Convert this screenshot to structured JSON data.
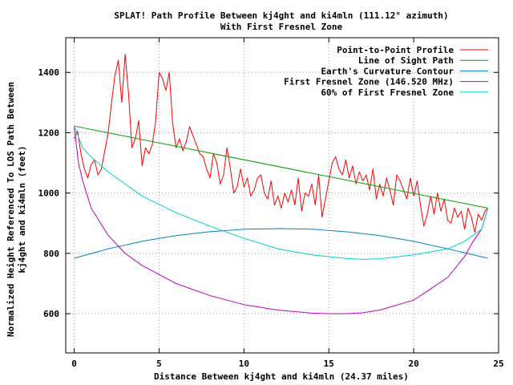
{
  "chart_data": {
    "type": "line",
    "title": "SPLAT! Path Profile Between kj4ght and ki4mln (111.12° azimuth)",
    "subtitle": "With First Fresnel Zone",
    "xlabel": "Distance Between kj4ght and ki4mln (24.37 miles)",
    "ylabel": [
      "Normalized Height Referenced To LOS Path Between",
      "kj4ght and ki4mln (feet)"
    ],
    "xlim": [
      -0.5,
      25
    ],
    "ylim": [
      470,
      1515
    ],
    "x_ticks": [
      "0",
      "5",
      "10",
      "15",
      "20",
      "25"
    ],
    "y_ticks": [
      "600",
      "800",
      "1000",
      "1200",
      "1400"
    ],
    "grid": true,
    "legend_position": "top-right",
    "series": [
      {
        "name": "Point-to-Point Profile",
        "color": "#ff0000",
        "x": [
          0,
          0.2,
          0.4,
          0.6,
          0.8,
          1.0,
          1.2,
          1.4,
          1.6,
          1.8,
          2.0,
          2.2,
          2.4,
          2.6,
          2.8,
          3.0,
          3.2,
          3.4,
          3.6,
          3.8,
          4.0,
          4.2,
          4.4,
          4.6,
          4.8,
          5.0,
          5.2,
          5.4,
          5.6,
          5.8,
          6.0,
          6.2,
          6.4,
          6.6,
          6.8,
          7.0,
          7.2,
          7.4,
          7.6,
          7.8,
          8.0,
          8.2,
          8.4,
          8.6,
          8.8,
          9.0,
          9.2,
          9.4,
          9.6,
          9.8,
          10.0,
          10.2,
          10.4,
          10.6,
          10.8,
          11.0,
          11.2,
          11.4,
          11.6,
          11.8,
          12.0,
          12.2,
          12.4,
          12.6,
          12.8,
          13.0,
          13.2,
          13.4,
          13.6,
          13.8,
          14.0,
          14.2,
          14.4,
          14.6,
          14.8,
          15.0,
          15.2,
          15.4,
          15.6,
          15.8,
          16.0,
          16.2,
          16.4,
          16.6,
          16.8,
          17.0,
          17.2,
          17.4,
          17.6,
          17.8,
          18.0,
          18.2,
          18.4,
          18.6,
          18.8,
          19.0,
          19.2,
          19.4,
          19.6,
          19.8,
          20.0,
          20.2,
          20.4,
          20.6,
          20.8,
          21.0,
          21.2,
          21.4,
          21.6,
          21.8,
          22.0,
          22.2,
          22.4,
          22.6,
          22.8,
          23.0,
          23.2,
          23.4,
          23.6,
          23.8,
          24.0,
          24.2,
          24.37
        ],
        "y": [
          1180,
          1205,
          1130,
          1080,
          1050,
          1095,
          1110,
          1060,
          1080,
          1140,
          1200,
          1300,
          1390,
          1440,
          1300,
          1460,
          1330,
          1150,
          1180,
          1240,
          1090,
          1150,
          1130,
          1160,
          1240,
          1400,
          1380,
          1340,
          1400,
          1230,
          1150,
          1180,
          1140,
          1170,
          1220,
          1190,
          1160,
          1130,
          1120,
          1080,
          1050,
          1130,
          1100,
          1030,
          1060,
          1150,
          1080,
          1000,
          1020,
          1080,
          1020,
          1050,
          990,
          1010,
          1050,
          1060,
          1000,
          980,
          1040,
          960,
          990,
          950,
          1000,
          970,
          1010,
          960,
          1050,
          940,
          1000,
          990,
          1030,
          960,
          1060,
          920,
          980,
          1040,
          1100,
          1120,
          1080,
          1060,
          1110,
          1050,
          1090,
          1030,
          1070,
          1040,
          1060,
          1010,
          1080,
          980,
          1030,
          990,
          1050,
          1010,
          960,
          1060,
          1040,
          1010,
          980,
          1050,
          990,
          1040,
          960,
          890,
          930,
          990,
          930,
          1000,
          940,
          980,
          910,
          900,
          950,
          920,
          940,
          880,
          950,
          920,
          870,
          930,
          910,
          940,
          950
        ]
      },
      {
        "name": "Line of Sight Path",
        "color": "#00a000",
        "x": [
          0,
          24.37
        ],
        "y": [
          1222,
          950
        ]
      },
      {
        "name": "Earth's Curvature Contour",
        "color": "#0080c0",
        "x": [
          0,
          2,
          4,
          6,
          8,
          10,
          12.185,
          14,
          16,
          18,
          20,
          22,
          24.37
        ],
        "y": [
          784,
          815,
          840,
          859,
          872,
          880,
          882,
          880,
          872,
          859,
          840,
          815,
          784
        ]
      },
      {
        "name": "First Fresnel Zone (146.520 MHz)",
        "color": "#c000c0",
        "x": [
          0,
          0.25,
          0.5,
          1,
          2,
          3,
          4,
          6,
          8,
          10,
          12,
          14,
          15,
          16,
          17,
          18,
          20,
          22,
          23,
          23.5,
          24,
          24.37
        ],
        "y": [
          1220,
          1100,
          1040,
          950,
          860,
          800,
          760,
          700,
          660,
          630,
          612,
          602,
          600,
          600,
          603,
          612,
          645,
          720,
          790,
          840,
          880,
          950
        ]
      },
      {
        "name": "60% of First Fresnel Zone",
        "color": "#00d0d0",
        "x": [
          0,
          0.5,
          1,
          2,
          4,
          6,
          8,
          10,
          12,
          14,
          16,
          17,
          18,
          20,
          22,
          23,
          24,
          24.37
        ],
        "y": [
          1222,
          1150,
          1120,
          1070,
          990,
          935,
          890,
          850,
          815,
          795,
          783,
          780,
          782,
          795,
          815,
          840,
          880,
          950
        ]
      }
    ]
  }
}
